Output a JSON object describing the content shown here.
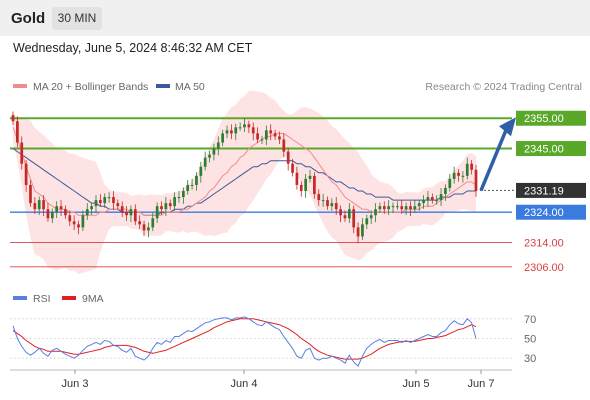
{
  "header": {
    "title": "Gold",
    "timeframe": "30 MIN",
    "datetime": "Wednesday, June 5, 2024 8:46:32 AM CET"
  },
  "legend": {
    "ma20": "MA 20 + Bollinger Bands",
    "ma50": "MA 50",
    "credit": "Research © 2024 Trading Central",
    "rsi": "RSI",
    "ma9": "9MA"
  },
  "colors": {
    "ma20": "#f28c8c",
    "ma50": "#3b5a9a",
    "bollinger_fill": "#fde3e3",
    "up_candle": "#2e7d32",
    "down_candle": "#c62828",
    "resistance": "#5aa82a",
    "support": "#3a7be0",
    "support_red": "#d94040",
    "arrow": "#2f5fa8",
    "rsi": "#5b7fe0",
    "rsi_ma": "#e02020"
  },
  "chart_data": [
    {
      "type": "candlestick",
      "instrument": "Gold",
      "timeframe": "30 MIN",
      "y_range": [
        2300,
        2362
      ],
      "x_labels": [
        "Jun 3",
        "Jun 4",
        "Jun 5",
        "Jun 7"
      ],
      "current_price": 2331.19,
      "levels": [
        {
          "value": 2355.0,
          "label": "2355.00",
          "kind": "resistance"
        },
        {
          "value": 2345.0,
          "label": "2345.00",
          "kind": "resistance"
        },
        {
          "value": 2324.0,
          "label": "2324.00",
          "kind": "support"
        },
        {
          "value": 2314.0,
          "label": "2314.00",
          "kind": "support-minor"
        },
        {
          "value": 2306.0,
          "label": "2306.00",
          "kind": "support-minor"
        }
      ],
      "current_label": "2331.19",
      "closes": [
        2354,
        2347,
        2340,
        2333,
        2327,
        2325,
        2328,
        2325,
        2322,
        2324,
        2326,
        2325,
        2323,
        2321,
        2320,
        2319,
        2323,
        2325,
        2326,
        2328,
        2327,
        2329,
        2329,
        2327,
        2326,
        2324,
        2323,
        2325,
        2321,
        2320,
        2318,
        2319,
        2322,
        2326,
        2325,
        2327,
        2326,
        2329,
        2329,
        2331,
        2333,
        2333,
        2336,
        2339,
        2342,
        2343,
        2345,
        2347,
        2350,
        2351,
        2350,
        2352,
        2352,
        2353,
        2352,
        2350,
        2348,
        2348,
        2351,
        2350,
        2349,
        2348,
        2344,
        2340,
        2337,
        2333,
        2331,
        2335,
        2336,
        2330,
        2328,
        2328,
        2326,
        2327,
        2325,
        2323,
        2322,
        2325,
        2319,
        2316,
        2320,
        2322,
        2323,
        2325,
        2326,
        2325,
        2326,
        2326,
        2326,
        2325,
        2326,
        2325,
        2326,
        2327,
        2328,
        2329,
        2328,
        2328,
        2330,
        2332,
        2335,
        2337,
        2336,
        2336,
        2340,
        2338,
        2331
      ],
      "ma20": [
        2352,
        2348,
        2344,
        2339,
        2335,
        2331,
        2330,
        2329,
        2327,
        2326,
        2325,
        2325,
        2325,
        2324,
        2324,
        2323,
        2323,
        2323,
        2323,
        2323,
        2324,
        2324,
        2325,
        2325,
        2325,
        2325,
        2325,
        2324,
        2324,
        2324,
        2323,
        2323,
        2323,
        2323,
        2323,
        2324,
        2324,
        2324,
        2324,
        2325,
        2325,
        2326,
        2327,
        2328,
        2329,
        2331,
        2332,
        2334,
        2336,
        2337,
        2339,
        2340,
        2342,
        2343,
        2345,
        2346,
        2347,
        2348,
        2349,
        2349,
        2350,
        2350,
        2350,
        2349,
        2348,
        2347,
        2346,
        2345,
        2344,
        2342,
        2340,
        2338,
        2336,
        2334,
        2333,
        2331,
        2329,
        2328,
        2327,
        2326,
        2325,
        2325,
        2324,
        2324,
        2324,
        2324,
        2324,
        2324,
        2324,
        2324,
        2325,
        2325,
        2325,
        2325,
        2326,
        2326,
        2326,
        2327,
        2328,
        2329,
        2330,
        2331,
        2332,
        2333,
        2334,
        2334,
        2333
      ],
      "ma50": [
        2345,
        2344,
        2343,
        2342,
        2341,
        2340,
        2339,
        2338,
        2337,
        2336,
        2335,
        2334,
        2333,
        2332,
        2331,
        2330,
        2329,
        2328,
        2327,
        2327,
        2326,
        2326,
        2325,
        2325,
        2325,
        2324,
        2324,
        2324,
        2324,
        2324,
        2323,
        2323,
        2323,
        2323,
        2324,
        2324,
        2324,
        2325,
        2325,
        2325,
        2326,
        2326,
        2327,
        2327,
        2328,
        2329,
        2330,
        2331,
        2332,
        2333,
        2334,
        2335,
        2336,
        2337,
        2338,
        2339,
        2339,
        2340,
        2340,
        2341,
        2341,
        2341,
        2341,
        2341,
        2341,
        2340,
        2340,
        2339,
        2339,
        2338,
        2337,
        2337,
        2336,
        2335,
        2334,
        2334,
        2333,
        2332,
        2332,
        2331,
        2331,
        2330,
        2330,
        2329,
        2329,
        2329,
        2329,
        2328,
        2328,
        2328,
        2328,
        2328,
        2328,
        2328,
        2328,
        2328,
        2328,
        2328,
        2329,
        2329,
        2329,
        2330,
        2330,
        2330,
        2331,
        2331,
        2331
      ]
    },
    {
      "type": "line",
      "title": "RSI",
      "y_range": [
        20,
        80
      ],
      "y_ticks": [
        70,
        50,
        30
      ],
      "rsi": [
        63,
        50,
        42,
        36,
        33,
        36,
        40,
        35,
        32,
        38,
        40,
        37,
        34,
        32,
        30,
        33,
        38,
        42,
        44,
        46,
        44,
        48,
        47,
        43,
        42,
        38,
        36,
        40,
        32,
        30,
        28,
        32,
        40,
        46,
        44,
        48,
        46,
        52,
        52,
        55,
        58,
        57,
        60,
        63,
        66,
        67,
        69,
        70,
        71,
        71,
        69,
        71,
        71,
        72,
        70,
        67,
        64,
        63,
        67,
        64,
        61,
        59,
        52,
        46,
        40,
        32,
        30,
        38,
        40,
        30,
        28,
        30,
        30,
        32,
        30,
        28,
        25,
        33,
        26,
        22,
        32,
        40,
        44,
        47,
        49,
        46,
        48,
        48,
        48,
        46,
        48,
        46,
        48,
        50,
        52,
        54,
        52,
        52,
        56,
        58,
        64,
        68,
        65,
        64,
        70,
        66,
        50
      ],
      "ma9": [
        58,
        55,
        52,
        48,
        45,
        42,
        40,
        39,
        37,
        37,
        37,
        37,
        36,
        35,
        34,
        34,
        35,
        36,
        37,
        38,
        39,
        41,
        42,
        43,
        43,
        43,
        43,
        42,
        41,
        39,
        37,
        36,
        35,
        36,
        37,
        38,
        40,
        42,
        44,
        46,
        48,
        50,
        52,
        54,
        56,
        58,
        61,
        63,
        65,
        67,
        68,
        69,
        70,
        70,
        70,
        70,
        69,
        68,
        67,
        66,
        65,
        64,
        62,
        60,
        57,
        54,
        50,
        47,
        44,
        40,
        37,
        35,
        33,
        32,
        31,
        30,
        29,
        29,
        29,
        29,
        30,
        32,
        34,
        37,
        40,
        42,
        44,
        45,
        46,
        47,
        47,
        47,
        47,
        48,
        49,
        50,
        50,
        51,
        52,
        53,
        55,
        57,
        59,
        60,
        62,
        64,
        62
      ]
    }
  ]
}
